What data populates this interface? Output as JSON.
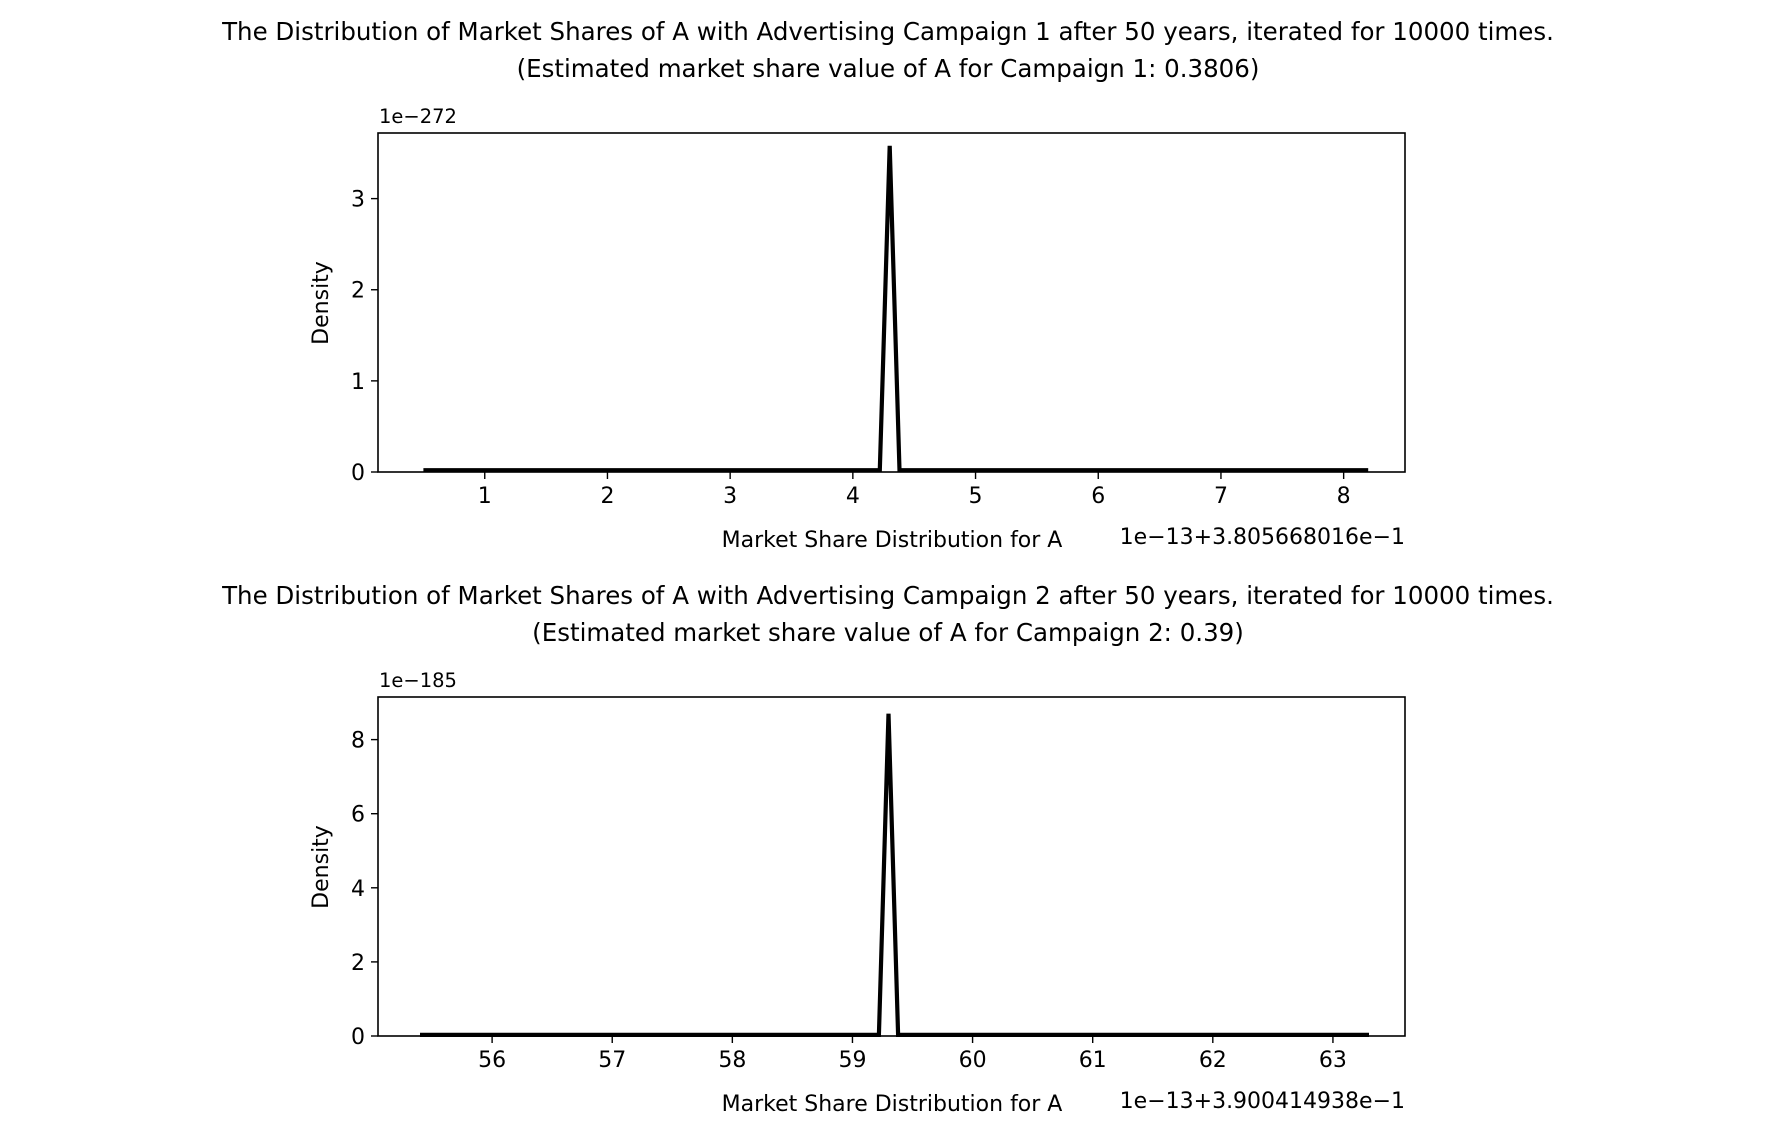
{
  "chart_data": [
    {
      "type": "line",
      "title": "The Distribution of Market Shares of A with Advertising Campaign 1 after 50 years, iterated for 10000 times.",
      "subtitle": "(Estimated market share value of A for Campaign 1: 0.3806)",
      "xlabel": "Market Share Distribution for A",
      "ylabel": "Density",
      "x_offset_label": "1e−13+3.805668016e−1",
      "y_scale_label": "1e−272",
      "xlim": [
        0.13,
        8.5
      ],
      "ylim": [
        0,
        3.72
      ],
      "x_ticks": [
        1,
        2,
        3,
        4,
        5,
        6,
        7,
        8
      ],
      "x_tick_labels": [
        "1",
        "2",
        "3",
        "4",
        "5",
        "6",
        "7",
        "8"
      ],
      "y_ticks": [
        0,
        1,
        2,
        3
      ],
      "y_tick_labels": [
        "0",
        "1",
        "2",
        "3"
      ],
      "grid": false,
      "series": [
        {
          "color": "#000000",
          "x": [
            0.5,
            4.2,
            4.22,
            4.3,
            4.38,
            4.4,
            8.2
          ],
          "y": [
            0.02,
            0.02,
            0.02,
            3.58,
            0.02,
            0.02,
            0.02
          ]
        }
      ]
    },
    {
      "type": "line",
      "title": "The Distribution of Market Shares of A with Advertising Campaign 2 after 50 years, iterated for 10000 times.",
      "subtitle": "(Estimated market share value of A for Campaign 2: 0.39)",
      "xlabel": "Market Share Distribution for A",
      "ylabel": "Density",
      "x_offset_label": "1e−13+3.900414938e−1",
      "y_scale_label": "1e−185",
      "xlim": [
        55.05,
        63.6
      ],
      "ylim": [
        0,
        9.15
      ],
      "x_ticks": [
        56,
        57,
        58,
        59,
        60,
        61,
        62,
        63
      ],
      "x_tick_labels": [
        "56",
        "57",
        "58",
        "59",
        "60",
        "61",
        "62",
        "63"
      ],
      "y_ticks": [
        0,
        2,
        4,
        6,
        8
      ],
      "y_tick_labels": [
        "0",
        "2",
        "4",
        "6",
        "8"
      ],
      "grid": false,
      "series": [
        {
          "color": "#000000",
          "x": [
            55.4,
            59.2,
            59.22,
            59.3,
            59.38,
            59.4,
            63.3
          ],
          "y": [
            0.03,
            0.03,
            0.03,
            8.7,
            0.03,
            0.03,
            0.03
          ]
        }
      ]
    }
  ]
}
